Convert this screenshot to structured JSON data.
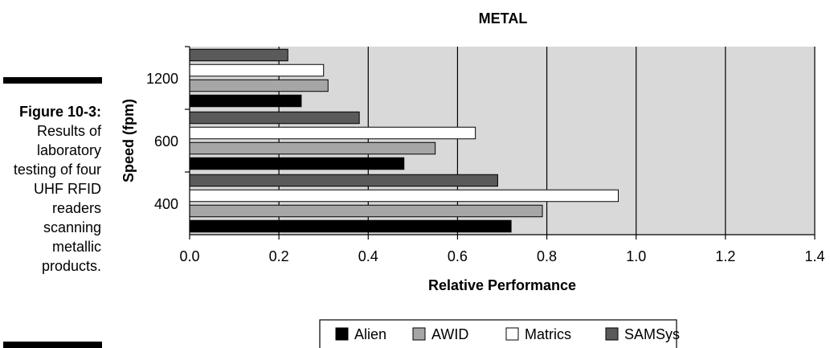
{
  "caption": {
    "figure_label": "Figure 10-3:",
    "text": "Results of laboratory testing of four UHF RFID readers scanning metallic products."
  },
  "chart_data": {
    "type": "bar",
    "orientation": "horizontal",
    "title": "METAL",
    "xlabel": "Relative Performance",
    "ylabel": "Speed (fpm)",
    "categories": [
      "400",
      "600",
      "1200"
    ],
    "series": [
      {
        "name": "Alien",
        "values": [
          0.72,
          0.48,
          0.25
        ],
        "color": "#000000"
      },
      {
        "name": "AWID",
        "values": [
          0.79,
          0.55,
          0.31
        ],
        "color": "#a6a6a6"
      },
      {
        "name": "Matrics",
        "values": [
          0.96,
          0.64,
          0.3
        ],
        "color": "#ffffff"
      },
      {
        "name": "SAMSys",
        "values": [
          0.69,
          0.38,
          0.22
        ],
        "color": "#5a5a5a"
      }
    ],
    "xlim": [
      0,
      1.4
    ],
    "xticks": [
      "0.0",
      "0.2",
      "0.4",
      "0.6",
      "0.8",
      "1.0",
      "1.2",
      "1.4"
    ],
    "plot_background": "#d9d9d9",
    "grid": "vertical",
    "legend_position": "bottom"
  }
}
